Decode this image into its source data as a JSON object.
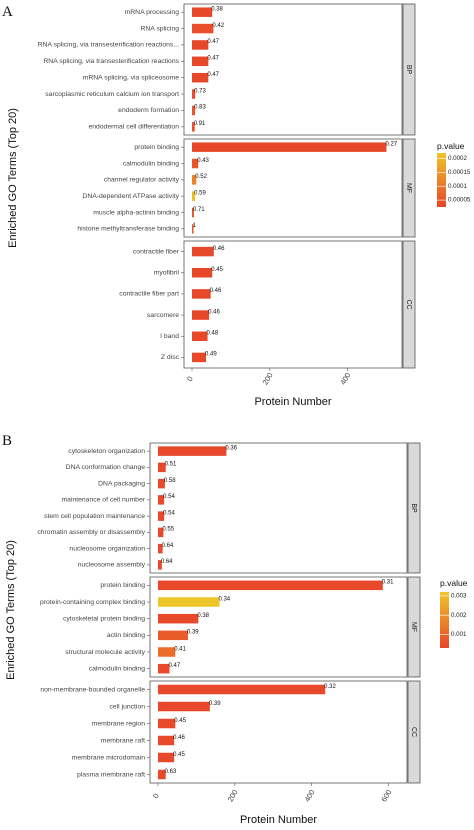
{
  "figure": {
    "panels": [
      {
        "letter": "A",
        "ylabel": "Enriched GO Terms (Top 20)",
        "xlabel": "Protein Number",
        "x_ticks": [
          "0",
          "200",
          "400"
        ],
        "x_max": 500,
        "legend": {
          "title": "p.value",
          "ticks": [
            "0.0002",
            "0.00015",
            "0.0001",
            "0.00005"
          ],
          "tick_values": [
            0.0002,
            0.00015,
            0.0001,
            5e-05
          ],
          "range": [
            2.5e-05,
            0.00022
          ],
          "colors": [
            "#EEC528",
            "#E8452A"
          ]
        },
        "groups": [
          {
            "name": "BP",
            "terms": [
              {
                "label": "mRNA processing",
                "value": 52,
                "ratio": "0.38",
                "p": 3e-05
              },
              {
                "label": "RNA splicing",
                "value": 55,
                "ratio": "0.42",
                "p": 4e-05
              },
              {
                "label": "RNA splicing, via transesterification reactions...",
                "value": 42,
                "ratio": "0.47",
                "p": 3e-05
              },
              {
                "label": "RNA splicing, via transesterification reactions",
                "value": 42,
                "ratio": "0.47",
                "p": 3e-05
              },
              {
                "label": "mRNA splicing, via spliceosome",
                "value": 42,
                "ratio": "0.47",
                "p": 3e-05
              },
              {
                "label": "sarcoplasmic reticulum calcium ion transport",
                "value": 8,
                "ratio": "0.73",
                "p": 4e-05
              },
              {
                "label": "endoderm formation",
                "value": 8,
                "ratio": "0.83",
                "p": 5e-05
              },
              {
                "label": "endodermal cell differentiation",
                "value": 7,
                "ratio": "0.91",
                "p": 4e-05
              }
            ]
          },
          {
            "name": "MF",
            "terms": [
              {
                "label": "protein binding",
                "value": 500,
                "ratio": "0.27",
                "p": 3e-05
              },
              {
                "label": "calmodulin binding",
                "value": 16,
                "ratio": "0.43",
                "p": 5e-05
              },
              {
                "label": "channel regulator activity",
                "value": 11,
                "ratio": "0.52",
                "p": 0.00012
              },
              {
                "label": "DNA-dependent ATPase activity",
                "value": 8,
                "ratio": "0.59",
                "p": 0.00021
              },
              {
                "label": "muscle alpha-actinin binding",
                "value": 5,
                "ratio": "0.71",
                "p": 5e-05
              },
              {
                "label": "histone methyltransferase binding",
                "value": 4,
                "ratio": "1",
                "p": 5e-05
              }
            ]
          },
          {
            "name": "CC",
            "terms": [
              {
                "label": "contractile fiber",
                "value": 56,
                "ratio": "0.46",
                "p": 3e-05
              },
              {
                "label": "myofibril",
                "value": 52,
                "ratio": "0.45",
                "p": 3e-05
              },
              {
                "label": "contractile fiber part",
                "value": 48,
                "ratio": "0.46",
                "p": 3e-05
              },
              {
                "label": "sarcomere",
                "value": 44,
                "ratio": "0.46",
                "p": 3e-05
              },
              {
                "label": "I band",
                "value": 40,
                "ratio": "0.48",
                "p": 3e-05
              },
              {
                "label": "Z disc",
                "value": 36,
                "ratio": "0.49",
                "p": 3e-05
              }
            ]
          }
        ]
      },
      {
        "letter": "B",
        "ylabel": "Enriched GO Terms (Top 20)",
        "xlabel": "Protein Number",
        "x_ticks": [
          "0",
          "200",
          "400",
          "600"
        ],
        "x_max": 600,
        "legend": {
          "title": "p.value",
          "ticks": [
            "0.003",
            "0.002",
            "0.001"
          ],
          "tick_values": [
            0.003,
            0.002,
            0.001
          ],
          "range": [
            0.0003,
            0.0032
          ],
          "colors": [
            "#EEC528",
            "#E8452A"
          ]
        },
        "groups": [
          {
            "name": "BP",
            "terms": [
              {
                "label": "cytoskeleton organization",
                "value": 178,
                "ratio": "0.36",
                "p": 0.0004
              },
              {
                "label": "DNA conformation change",
                "value": 20,
                "ratio": "0.51",
                "p": 0.0004
              },
              {
                "label": "DNA packaging",
                "value": 18,
                "ratio": "0.58",
                "p": 0.0004
              },
              {
                "label": "maintenance of cell number",
                "value": 16,
                "ratio": "0.54",
                "p": 0.0004
              },
              {
                "label": "stem cell population maintenance",
                "value": 16,
                "ratio": "0.54",
                "p": 0.0004
              },
              {
                "label": "chromatin assembly or disassembly",
                "value": 14,
                "ratio": "0.55",
                "p": 0.0004
              },
              {
                "label": "nucleosome organization",
                "value": 12,
                "ratio": "0.64",
                "p": 0.0004
              },
              {
                "label": "nucleosome assembly",
                "value": 10,
                "ratio": "0.64",
                "p": 0.0004
              }
            ]
          },
          {
            "name": "MF",
            "terms": [
              {
                "label": "protein binding",
                "value": 585,
                "ratio": "0.31",
                "p": 0.0004
              },
              {
                "label": "protein-containing complex binding",
                "value": 160,
                "ratio": "0.34",
                "p": 0.0032
              },
              {
                "label": "cytoskeletal protein binding",
                "value": 105,
                "ratio": "0.38",
                "p": 0.0004
              },
              {
                "label": "actin binding",
                "value": 78,
                "ratio": "0.39",
                "p": 0.0008
              },
              {
                "label": "structural molecule activity",
                "value": 45,
                "ratio": "0.41",
                "p": 0.0012
              },
              {
                "label": "calmodulin binding",
                "value": 30,
                "ratio": "0.47",
                "p": 0.0004
              }
            ]
          },
          {
            "name": "CC",
            "terms": [
              {
                "label": "non-membrane-bounded organelle",
                "value": 435,
                "ratio": "0.32",
                "p": 0.0004
              },
              {
                "label": "cell junction",
                "value": 135,
                "ratio": "0.39",
                "p": 0.0004
              },
              {
                "label": "membrane region",
                "value": 45,
                "ratio": "0.45",
                "p": 0.0004
              },
              {
                "label": "membrane raft",
                "value": 42,
                "ratio": "0.46",
                "p": 0.0004
              },
              {
                "label": "membrane microdomain",
                "value": 42,
                "ratio": "0.45",
                "p": 0.0004
              },
              {
                "label": "plasma membrane raft",
                "value": 20,
                "ratio": "0.63",
                "p": 0.0004
              }
            ]
          }
        ]
      }
    ]
  },
  "chart_data": [
    {
      "type": "bar",
      "orientation": "horizontal",
      "xlabel": "Protein Number",
      "ylabel": "Enriched GO Terms (Top 20)",
      "xlim": [
        0,
        500
      ],
      "facets": [
        "BP",
        "MF",
        "CC"
      ],
      "color_by": "p.value",
      "grid": false
    },
    {
      "type": "bar",
      "orientation": "horizontal",
      "xlabel": "Protein Number",
      "ylabel": "Enriched GO Terms (Top 20)",
      "xlim": [
        0,
        600
      ],
      "facets": [
        "BP",
        "MF",
        "CC"
      ],
      "color_by": "p.value",
      "grid": false
    }
  ]
}
